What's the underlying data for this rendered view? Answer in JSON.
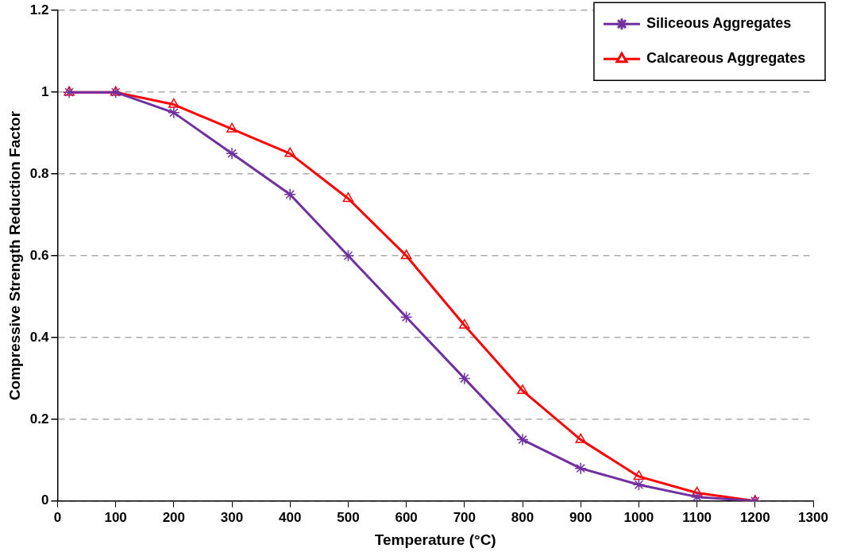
{
  "chart_data": {
    "type": "line",
    "xlabel": "Temperature (°C)",
    "ylabel": "Compressive Strength Reduction Factor",
    "xlim": [
      0,
      1300
    ],
    "xticks": [
      0,
      100,
      200,
      300,
      400,
      500,
      600,
      700,
      800,
      900,
      1000,
      1100,
      1200,
      1300
    ],
    "ylim": [
      0,
      1.2
    ],
    "yticks": [
      0,
      0.2,
      0.4,
      0.6,
      0.8,
      1,
      1.2
    ],
    "x": [
      20,
      100,
      200,
      300,
      400,
      500,
      600,
      700,
      800,
      900,
      1000,
      1100,
      1200
    ],
    "series": [
      {
        "name": "Siliceous Aggregates",
        "color": "#7030a0",
        "marker": "cross",
        "values": [
          1,
          1,
          0.95,
          0.85,
          0.75,
          0.6,
          0.45,
          0.3,
          0.15,
          0.08,
          0.04,
          0.01,
          0
        ]
      },
      {
        "name": "Calcareous Aggregates",
        "color": "#ff0000",
        "marker": "triangle",
        "values": [
          1,
          1,
          0.97,
          0.91,
          0.85,
          0.74,
          0.6,
          0.43,
          0.27,
          0.15,
          0.06,
          0.02,
          0
        ]
      }
    ],
    "grid": "y",
    "legend": "top right",
    "line_style": "solid"
  }
}
